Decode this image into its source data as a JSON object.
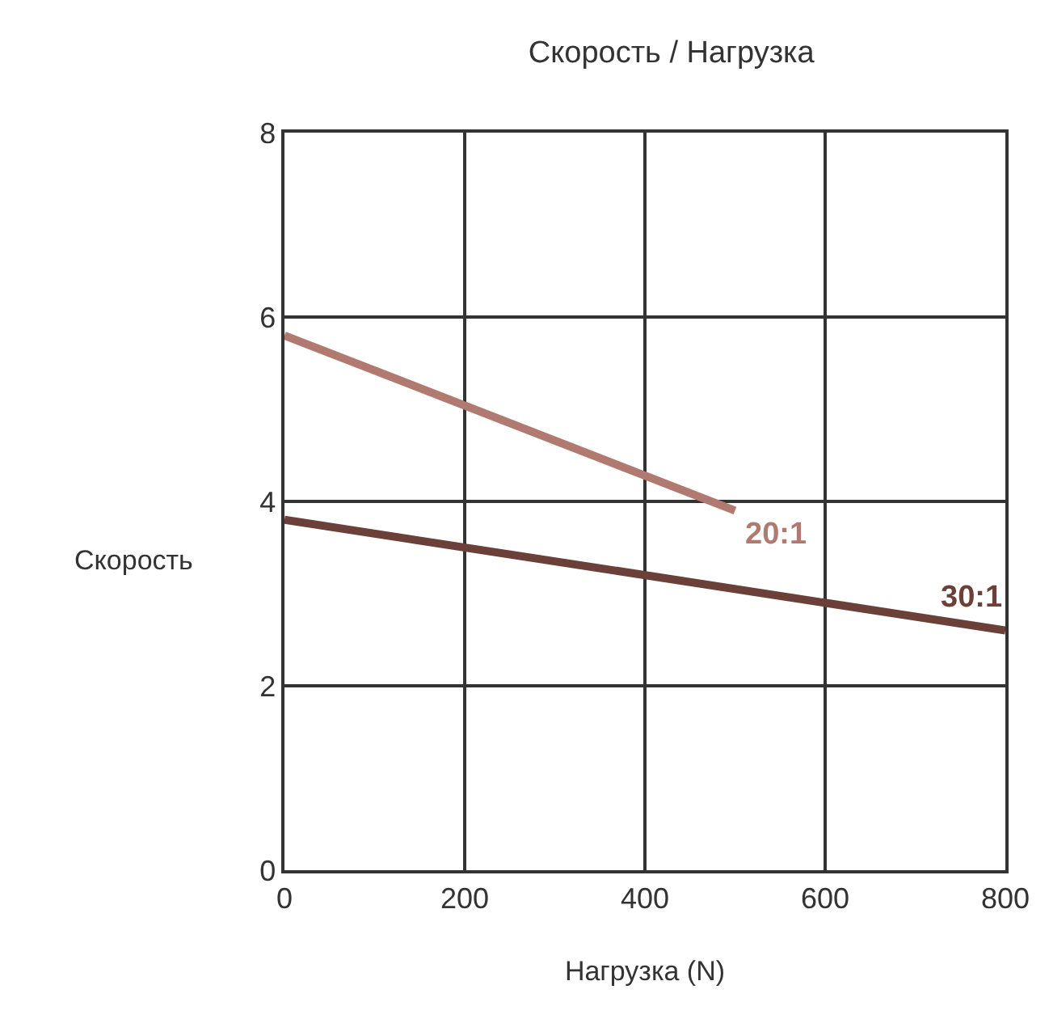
{
  "chart_data": {
    "type": "line",
    "title": "Скорость / Нагрузка",
    "xlabel": "Нагрузка (N)",
    "ylabel": "Скорость",
    "series": [
      {
        "name": "20:1",
        "color": "#b07a70",
        "x": [
          0,
          500
        ],
        "values": [
          5.8,
          3.9
        ]
      },
      {
        "name": "30:1",
        "color": "#6b4038",
        "x": [
          0,
          800
        ],
        "values": [
          3.8,
          2.6
        ]
      }
    ],
    "xlim": [
      0,
      800
    ],
    "xticks": [
      0,
      200,
      400,
      600,
      800
    ],
    "ylim": [
      0,
      8
    ],
    "yticks": [
      0,
      2,
      4,
      6,
      8
    ],
    "grid": true,
    "legend": false,
    "marker": "none",
    "line_style": "solid"
  }
}
